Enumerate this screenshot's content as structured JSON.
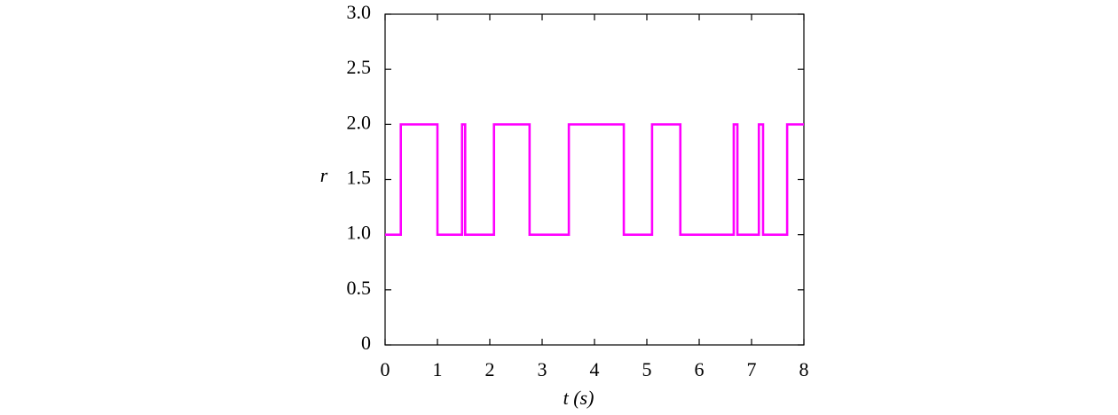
{
  "chart_data": {
    "type": "line",
    "x_label": "t (s)",
    "y_label": "r",
    "x": [
      0,
      0.3,
      0.3,
      1.0,
      1.0,
      1.47,
      1.47,
      1.53,
      1.53,
      2.08,
      2.08,
      2.76,
      2.76,
      3.51,
      3.51,
      4.56,
      4.56,
      5.1,
      5.1,
      5.64,
      5.64,
      6.66,
      6.66,
      6.73,
      6.73,
      7.14,
      7.14,
      7.22,
      7.22,
      7.68,
      7.68,
      8
    ],
    "series": [
      {
        "color": "#ff00ff",
        "values": [
          1,
          1,
          2,
          2,
          1,
          1,
          2,
          2,
          1,
          1,
          2,
          2,
          1,
          1,
          2,
          2,
          1,
          1,
          2,
          2,
          1,
          1,
          2,
          2,
          1,
          1,
          2,
          2,
          1,
          1,
          2,
          2
        ]
      }
    ],
    "xlim": [
      0,
      8
    ],
    "xticks": [
      0,
      1,
      2,
      3,
      4,
      5,
      6,
      7,
      8
    ],
    "ylim": [
      0,
      3
    ],
    "yticks": [
      0,
      0.5,
      {
        "value": 1,
        "label": "1.0"
      },
      1.5,
      {
        "value": 2,
        "label": "2.0"
      },
      2.5,
      {
        "value": 3,
        "label": "3.0"
      }
    ]
  }
}
